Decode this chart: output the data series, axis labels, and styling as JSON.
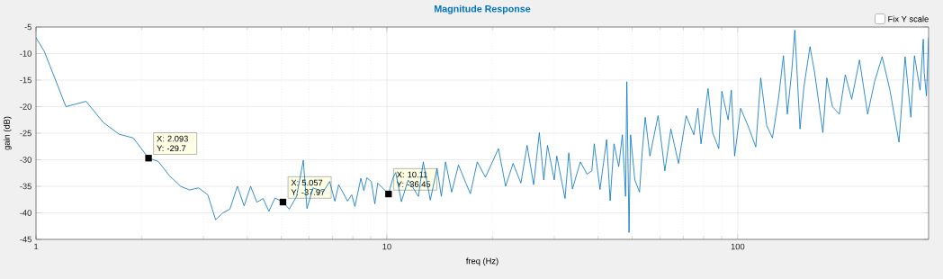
{
  "chart_data": {
    "type": "line",
    "title": "Magnitude Response",
    "xlabel": "freq (Hz)",
    "ylabel": "gain (dB)",
    "log": "x",
    "grid": true,
    "xlim": [
      1,
      350
    ],
    "ylim": [
      -45,
      -5
    ],
    "xticks": [
      1,
      10,
      100
    ],
    "yticks": [
      -45,
      -40,
      -35,
      -30,
      -25,
      -20,
      -15,
      -10,
      -5
    ],
    "series": [
      {
        "color": "#0072bd",
        "x": [
          1,
          1.056,
          1.217,
          1.389,
          1.556,
          1.727,
          1.894,
          2.093,
          2.229,
          2.4,
          2.583,
          2.74,
          2.906,
          3.088,
          3.25,
          3.41,
          3.57,
          3.75,
          3.92,
          4.09,
          4.26,
          4.44,
          4.61,
          4.8,
          5.057,
          5.27,
          5.53,
          5.78,
          5.92,
          6.16,
          6.59,
          6.87,
          7.11,
          7.29,
          7.73,
          7.94,
          8.11,
          8.43,
          8.6,
          8.77,
          9.03,
          9.24,
          9.42,
          10.11,
          10.4,
          10.6,
          11.0,
          11.5,
          12.3,
          12.7,
          13.3,
          13.9,
          14.3,
          14.7,
          15.3,
          16.0,
          16.8,
          17.3,
          18.1,
          19.1,
          20.8,
          21.8,
          22.9,
          24.1,
          25.1,
          26.2,
          27.2,
          28.0,
          28.7,
          30.0,
          30.5,
          32.2,
          33.0,
          33.8,
          35.6,
          37.2,
          38.4,
          39.0,
          40.5,
          42.3,
          43.3,
          44.4,
          45.8,
          46.9,
          47.9,
          48.3,
          49.0,
          49.5,
          50.9,
          52.5,
          53.4,
          54.5,
          56.2,
          59.3,
          62.0,
          64.5,
          67.8,
          71.3,
          75.0,
          77.0,
          78.6,
          82.3,
          84.8,
          88.3,
          90.1,
          93.9,
          95.9,
          98.0,
          101.9,
          107,
          112.6,
          116.3,
          121,
          125.6,
          130.6,
          135.0,
          138.5,
          142.6,
          145.5,
          150.5,
          154.4,
          160.7,
          165.6,
          174.9,
          179.5,
          186.2,
          194.8,
          202.6,
          211.3,
          222.4,
          234.6,
          245.7,
          258,
          271.6,
          288.2,
          300,
          311.5,
          319,
          331,
          338,
          340,
          345,
          350
        ],
        "values": [
          -7,
          -9.6,
          -20,
          -19,
          -23,
          -25.2,
          -25.9,
          -29.7,
          -30.3,
          -33,
          -35,
          -35.7,
          -35.3,
          -36.6,
          -41.3,
          -40,
          -39.3,
          -35,
          -38.7,
          -35,
          -38,
          -37.3,
          -39.7,
          -37.2,
          -37.97,
          -39.3,
          -36.9,
          -30.1,
          -39.2,
          -35.3,
          -36,
          -34.1,
          -37.8,
          -34.7,
          -37.8,
          -36.6,
          -38.8,
          -33.5,
          -35.8,
          -33.4,
          -34.1,
          -38.3,
          -34.4,
          -36.45,
          -33.5,
          -32.4,
          -37.9,
          -33.8,
          -36.9,
          -30.4,
          -37.6,
          -31.6,
          -36.9,
          -30.4,
          -36.1,
          -31,
          -34.4,
          -36.4,
          -30.4,
          -33.3,
          -27.9,
          -35,
          -30.7,
          -34.4,
          -27.3,
          -34.7,
          -24.9,
          -33.8,
          -27.3,
          -33.8,
          -29.3,
          -37.3,
          -28.7,
          -35.5,
          -30.4,
          -32.7,
          -32.1,
          -27,
          -35.6,
          -26.2,
          -37.7,
          -27,
          -31.3,
          -25.3,
          -36.9,
          -15.3,
          -43.7,
          -25.3,
          -33.8,
          -36.1,
          -28.7,
          -22,
          -29.3,
          -21.7,
          -32.1,
          -24.2,
          -30.7,
          -21.7,
          -25.3,
          -20.3,
          -27,
          -16.6,
          -24.9,
          -27.9,
          -17.1,
          -22.5,
          -16.9,
          -29.3,
          -20.3,
          -23.6,
          -27.6,
          -14.6,
          -23.6,
          -25.9,
          -18.6,
          -10.4,
          -21.4,
          -13.2,
          -5.6,
          -24.2,
          -16.3,
          -8.7,
          -13.5,
          -24.9,
          -14.6,
          -20,
          -21.4,
          -14,
          -18.6,
          -11.2,
          -21.4,
          -15.2,
          -10.6,
          -16.9,
          -26.7,
          -10.6,
          -22,
          -10.4,
          -16.9,
          -7.3,
          -13.5,
          -18,
          -7
        ]
      }
    ],
    "annotations": [
      "Fix Y scale",
      {
        "text": "X: 2.093 Y: -29.7",
        "x": 2.093,
        "y": -29.7
      },
      {
        "text": "X: 5.057 Y: -37.97",
        "x": 5.057,
        "y": -37.97
      },
      {
        "text": "X: 10.11 Y: -36.45",
        "x": 10.11,
        "y": -36.45
      }
    ]
  }
}
